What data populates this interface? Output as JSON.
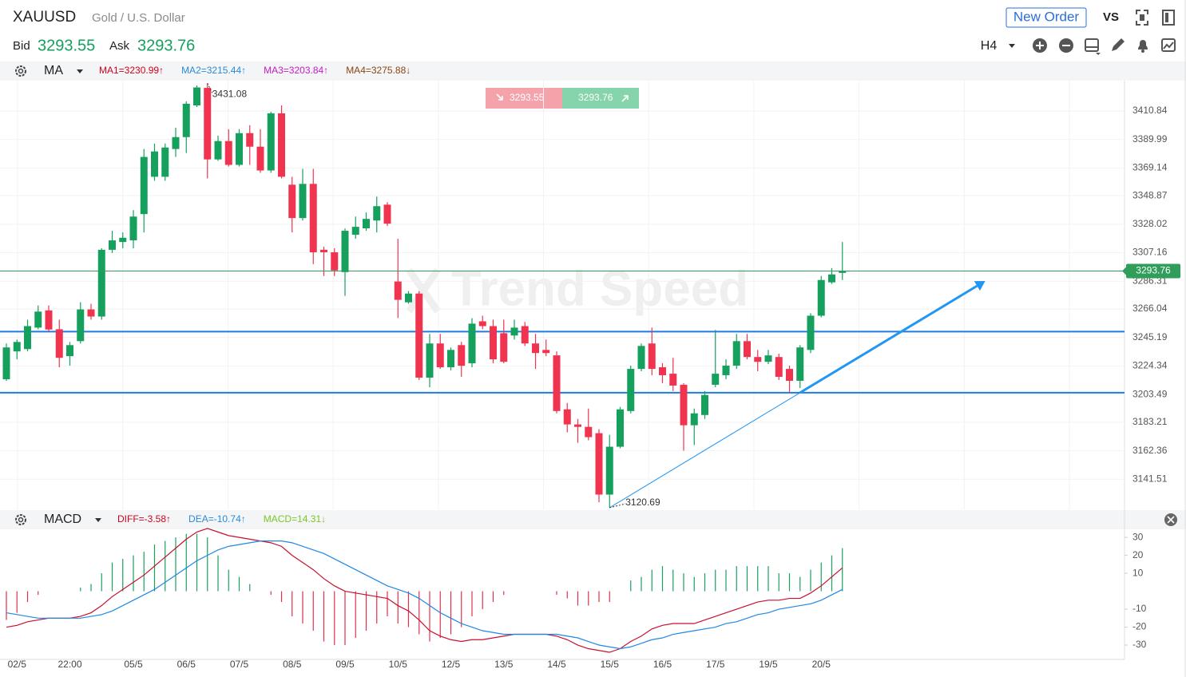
{
  "header": {
    "symbol": "XAUUSD",
    "name": "Gold / U.S. Dollar",
    "bid_label": "Bid",
    "bid": "3293.55",
    "ask_label": "Ask",
    "ask": "3293.76",
    "new_order": "New Order",
    "vs": "VS",
    "timeframe": "H4"
  },
  "chart_data": [
    {
      "type": "candlestick",
      "indicator": "MA",
      "legend": [
        {
          "label": "MA1=3230.99↑",
          "color": "#d0021b"
        },
        {
          "label": "MA2=3215.44↑",
          "color": "#2a8ad8"
        },
        {
          "label": "MA3=3203.84↑",
          "color": "#c71ac7"
        },
        {
          "label": "MA4=3275.88↓",
          "color": "#8b4513"
        }
      ],
      "categories": [
        null,
        "02/5",
        null,
        null,
        null,
        null,
        "22:00",
        null,
        null,
        null,
        null,
        null,
        "05/5",
        null,
        null,
        null,
        null,
        "06/5",
        null,
        null,
        null,
        null,
        "07/5",
        null,
        null,
        null,
        null,
        "08/5",
        null,
        null,
        null,
        null,
        "09/5",
        null,
        null,
        null,
        null,
        "10/5",
        null,
        null,
        null,
        null,
        "12/5",
        null,
        null,
        null,
        null,
        "13/5",
        null,
        null,
        null,
        null,
        "14/5",
        null,
        null,
        null,
        null,
        "15/5",
        null,
        null,
        null,
        null,
        "16/5",
        null,
        null,
        null,
        null,
        "17/5",
        null,
        null,
        null,
        null,
        "19/5",
        null,
        null,
        null,
        null,
        "20/5",
        null,
        null
      ],
      "open": [
        3214.6,
        3235.0,
        3236.7,
        3252.4,
        3265.0,
        3251.2,
        3231.5,
        3242.5,
        3265.7,
        3260.5,
        3309.3,
        3315.0,
        3316.2,
        3335.4,
        3362.7,
        3362.7,
        3383.0,
        3391.7,
        3414.9,
        3427.7,
        3375.4,
        3388.8,
        3371.4,
        3394.6,
        3384.7,
        3367.3,
        3409.1,
        3356.9,
        3332.5,
        3357.5,
        3309.3,
        3307.5,
        3293.0,
        3320.3,
        3325.0,
        3330.7,
        3342.3,
        3286.1,
        3270.9,
        3277.3,
        3215.8,
        3240.8,
        3223.4,
        3239.6,
        3226.3,
        3257.0,
        3253.5,
        3248.3,
        3246.6,
        3253.5,
        3240.8,
        3236.1,
        3232.1,
        3192.6,
        3181.6,
        3179.8,
        3175.2,
        3130.3,
        3165.3,
        3191.4,
        3222.2,
        3240.8,
        3223.4,
        3218.7,
        3210.6,
        3181.0,
        3188.5,
        3210.6,
        3217.6,
        3224.6,
        3242.5,
        3230.9,
        3227.4,
        3230.9,
        3222.2,
        3213.5,
        3236.1,
        3261.1,
        3285.5,
        3292.4
      ],
      "high": [
        3240.8,
        3243.7,
        3258.2,
        3268.6,
        3268.6,
        3258.2,
        3241.9,
        3271.0,
        3269.8,
        3310.4,
        3323.2,
        3322.0,
        3338.3,
        3383.0,
        3387.0,
        3387.0,
        3398.6,
        3417.8,
        3429.5,
        3431.08,
        3392.8,
        3397.5,
        3397.5,
        3400.4,
        3397.5,
        3410.3,
        3414.9,
        3362.7,
        3368.5,
        3368.5,
        3311.6,
        3310.4,
        3324.9,
        3333.6,
        3336.6,
        3348.2,
        3344.1,
        3317.4,
        3279.1,
        3279.1,
        3247.8,
        3247.8,
        3237.9,
        3241.9,
        3259.3,
        3261.1,
        3258.2,
        3258.2,
        3258.2,
        3256.5,
        3247.8,
        3243.7,
        3235.0,
        3197.3,
        3185.6,
        3193.2,
        3178.1,
        3174.0,
        3194.4,
        3224.6,
        3240.8,
        3252.4,
        3226.3,
        3230.3,
        3211.8,
        3193.2,
        3206.0,
        3250.7,
        3229.2,
        3247.8,
        3247.8,
        3236.1,
        3236.1,
        3233.3,
        3224.6,
        3239.6,
        3262.9,
        3290.1,
        3295.9,
        3315.0
      ],
      "low": [
        3213.5,
        3229.2,
        3235.0,
        3251.2,
        3249.5,
        3223.4,
        3224.6,
        3240.8,
        3258.2,
        3258.2,
        3307.0,
        3310.4,
        3310.4,
        3322.0,
        3359.8,
        3359.8,
        3377.2,
        3380.1,
        3413.7,
        3361.5,
        3374.3,
        3370.2,
        3370.2,
        3371.4,
        3365.6,
        3365.6,
        3361.5,
        3322.0,
        3330.7,
        3298.8,
        3290.1,
        3290.1,
        3275.6,
        3317.4,
        3323.2,
        3322.0,
        3326.7,
        3259.4,
        3269.8,
        3214.1,
        3208.8,
        3222.2,
        3221.1,
        3216.4,
        3223.4,
        3251.2,
        3226.3,
        3226.3,
        3243.7,
        3239.0,
        3222.2,
        3231.5,
        3189.7,
        3175.8,
        3168.2,
        3170.0,
        3124.7,
        3120.69,
        3164.1,
        3189.7,
        3220.5,
        3217.6,
        3211.8,
        3206.0,
        3162.4,
        3166.5,
        3185.6,
        3208.8,
        3214.7,
        3222.2,
        3229.2,
        3220.5,
        3225.7,
        3214.1,
        3204.8,
        3208.2,
        3233.8,
        3259.9,
        3284.3,
        3287.2
      ],
      "close": [
        3237.9,
        3241.9,
        3253.5,
        3264.1,
        3251.0,
        3230.3,
        3239.6,
        3265.7,
        3260.5,
        3309.3,
        3316.2,
        3318.1,
        3333.6,
        3377.2,
        3381.2,
        3384.1,
        3391.7,
        3416.1,
        3428.0,
        3375.4,
        3388.8,
        3371.4,
        3394.6,
        3384.7,
        3367.3,
        3409.1,
        3362.7,
        3332.5,
        3357.5,
        3307.5,
        3307.5,
        3294.2,
        3323.2,
        3326.1,
        3331.9,
        3341.2,
        3328.4,
        3272.7,
        3277.3,
        3215.8,
        3240.8,
        3223.4,
        3236.1,
        3224.5,
        3255.3,
        3253.5,
        3229.2,
        3227.4,
        3252.4,
        3240.8,
        3233.8,
        3233.8,
        3191.4,
        3181.6,
        3179.8,
        3172.3,
        3130.3,
        3165.3,
        3192.6,
        3222.2,
        3239.0,
        3222.2,
        3217.6,
        3210.0,
        3181.0,
        3189.7,
        3203.1,
        3218.7,
        3224.6,
        3242.5,
        3230.9,
        3227.4,
        3232.1,
        3216.4,
        3213.5,
        3237.9,
        3261.1,
        3287.2,
        3291.3,
        3293.76
      ],
      "up_color": "#16a05d",
      "down_color": "#f0344f",
      "ylim": [
        3119.5,
        3433.0
      ],
      "yticks": [
        3141.51,
        3162.36,
        3183.21,
        3203.49,
        3224.34,
        3245.19,
        3266.04,
        3286.31,
        3307.16,
        3328.02,
        3348.87,
        3369.14,
        3389.99,
        3410.84
      ],
      "grid": true,
      "price_line_color": "#2e9e5a",
      "levels": [
        {
          "value": 3249.5,
          "color": "#1e7be0"
        },
        {
          "value": 3204.8,
          "color": "#1e7be0"
        }
      ],
      "trend_line": {
        "points": [
          [
            57,
            3120.69
          ],
          [
            75,
            3204.8
          ],
          [
            92.5,
            3286.5
          ]
        ],
        "color": "#2196f3"
      },
      "watermark": "Trend Speed"
    },
    {
      "type": "macd",
      "indicator": "MACD",
      "legend": [
        {
          "label": "DIFF=-3.58↑",
          "color": "#d0021b"
        },
        {
          "label": "DEA=-10.74↑",
          "color": "#2a8ad8"
        },
        {
          "label": "MACD=14.31↓",
          "color": "#7cc52a"
        }
      ],
      "diff": {
        "color": "#c8102e",
        "values": [
          -20,
          -19,
          -17,
          -16,
          -15,
          -15,
          -15,
          -14,
          -12,
          -8,
          -3,
          1,
          5,
          9,
          14,
          19,
          24,
          29,
          33,
          35,
          33,
          31,
          30,
          29,
          28,
          27,
          25,
          20,
          16,
          12,
          7,
          3,
          0,
          -1,
          -2,
          -3,
          -4,
          -8,
          -11,
          -16,
          -22,
          -25,
          -27,
          -28,
          -27,
          -27,
          -26,
          -25,
          -24,
          -24,
          -24,
          -24,
          -25,
          -27,
          -30,
          -32,
          -33,
          -34,
          -32,
          -28,
          -25,
          -21,
          -19,
          -18,
          -18,
          -18,
          -16,
          -14,
          -12,
          -10,
          -8,
          -6,
          -5,
          -5,
          -4,
          -4,
          -1,
          3,
          8,
          13
        ]
      },
      "dea": {
        "color": "#1e88e5",
        "values": [
          -12,
          -13,
          -14,
          -15,
          -15,
          -15,
          -15,
          -15,
          -14,
          -13,
          -11,
          -8,
          -5,
          -2,
          1,
          5,
          9,
          13,
          17,
          20,
          23,
          25,
          26,
          27,
          28,
          28,
          28,
          27,
          25,
          23,
          21,
          18,
          15,
          12,
          9,
          6,
          3,
          1,
          -1,
          -4,
          -8,
          -12,
          -15,
          -18,
          -20,
          -22,
          -23,
          -24,
          -24,
          -24,
          -24,
          -24,
          -24,
          -25,
          -26,
          -28,
          -30,
          -31,
          -32,
          -31,
          -29,
          -27,
          -26,
          -24,
          -23,
          -22,
          -21,
          -20,
          -18,
          -17,
          -15,
          -13,
          -12,
          -10,
          -9,
          -8,
          -7,
          -5,
          -2,
          1
        ]
      },
      "hist": {
        "up_color": "#16a05d",
        "down_color": "#e0314b",
        "values": [
          -16,
          -12,
          -6,
          -2,
          0,
          0,
          0,
          2,
          4,
          10,
          16,
          18,
          20,
          22,
          26,
          28,
          30,
          32,
          32,
          30,
          20,
          12,
          8,
          4,
          0,
          -2,
          -6,
          -14,
          -18,
          -22,
          -28,
          -30,
          -30,
          -26,
          -22,
          -18,
          -14,
          -18,
          -20,
          -24,
          -28,
          -26,
          -24,
          -20,
          -14,
          -10,
          -6,
          -2,
          0,
          0,
          0,
          0,
          -2,
          -4,
          -8,
          -8,
          -6,
          -6,
          0,
          6,
          8,
          12,
          14,
          12,
          10,
          8,
          10,
          12,
          12,
          14,
          14,
          14,
          14,
          10,
          10,
          8,
          12,
          16,
          20,
          24
        ]
      },
      "ylim": [
        -38,
        34.5
      ],
      "yticks": [
        30,
        20,
        10,
        -10,
        -20,
        -30
      ]
    }
  ]
}
